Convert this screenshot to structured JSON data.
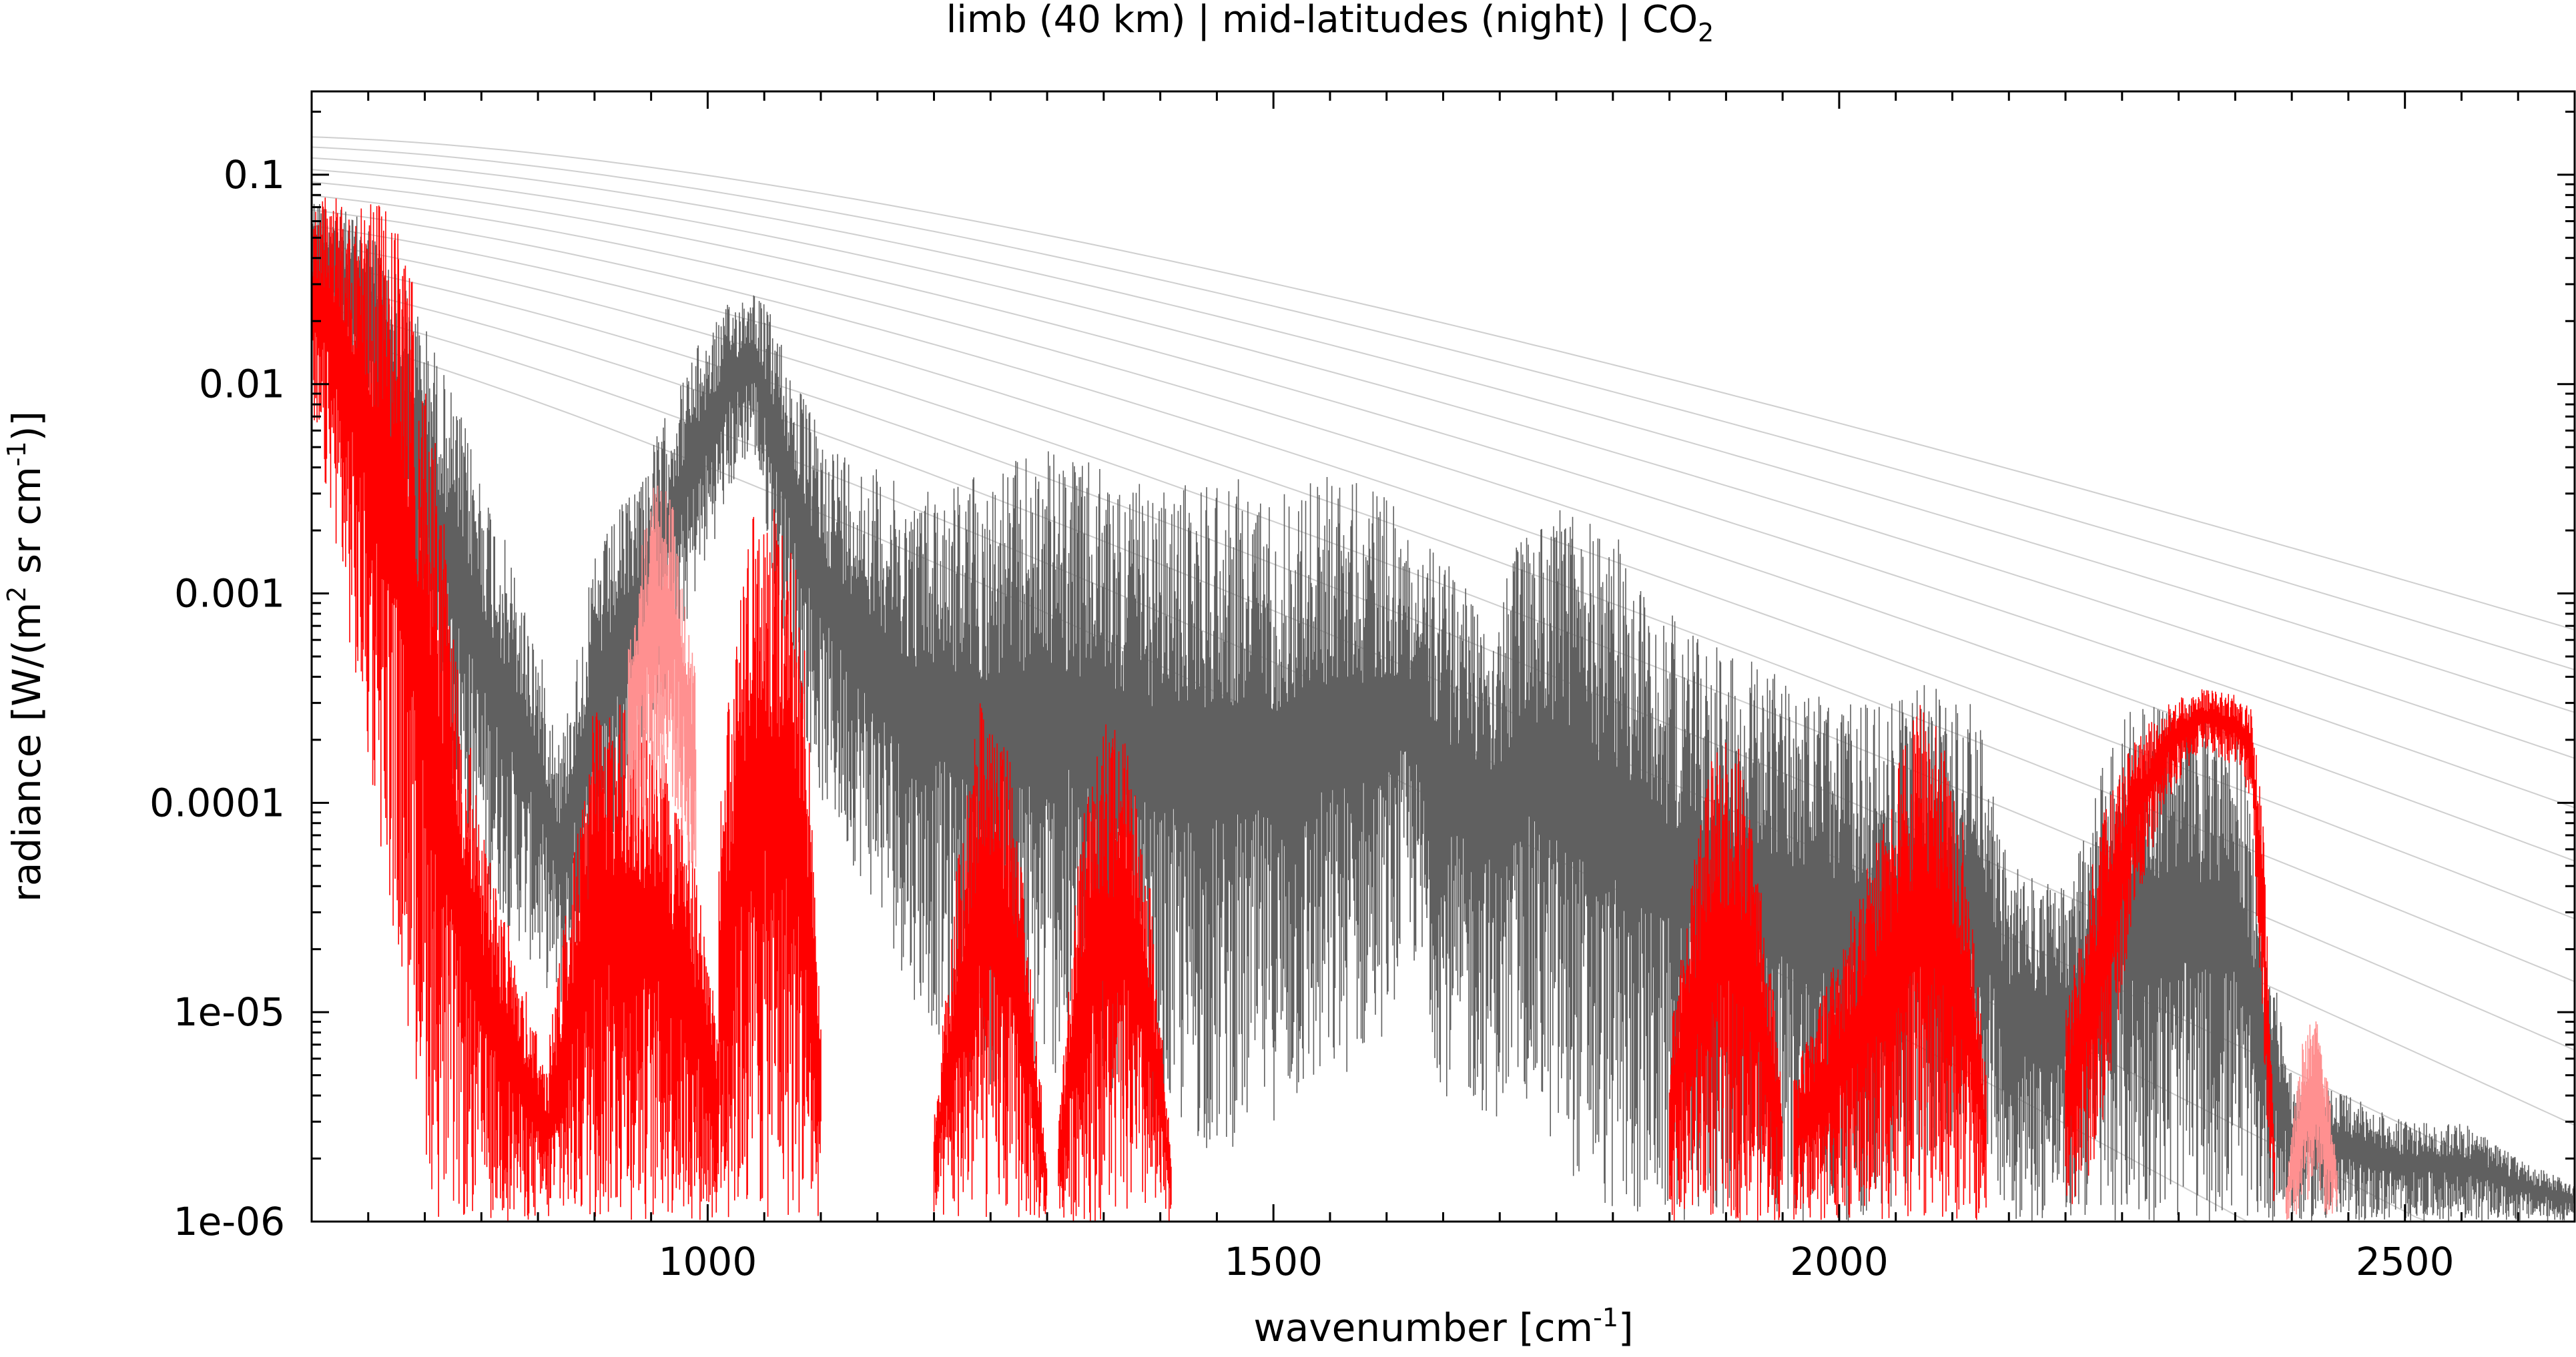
{
  "chart_data": {
    "type": "line",
    "title": {
      "main": "limb (40 km) | mid-latitudes (night) | CO",
      "subscript": "2"
    },
    "xlabel": {
      "text": "wavenumber [cm",
      "superscript": "-1",
      "suffix": "]"
    },
    "ylabel": {
      "part1": "radiance [W/(m",
      "sup1": "2",
      "part2": " sr cm",
      "sup2": "-1",
      "part3": ")]"
    },
    "x_axis": {
      "lim": [
        650,
        2650
      ],
      "major_ticks": [
        1000,
        1500,
        2000,
        2500
      ],
      "tick_labels": [
        "1000",
        "1500",
        "2000",
        "2500"
      ],
      "minor_step": 50
    },
    "y_axis": {
      "scale": "log",
      "lim": [
        1e-06,
        0.25
      ],
      "major_ticks": [
        1e-06,
        1e-05,
        0.0001,
        0.001,
        0.01,
        0.1
      ],
      "tick_labels": [
        "1e-06",
        "1e-05",
        "0.0001",
        "0.001",
        "0.01",
        "0.1"
      ]
    },
    "grid": false,
    "colors": {
      "total_spectrum": "#606060",
      "co2_spectrum": "#ff0000",
      "co2_light": "#ff9090",
      "planck_curves": "#bbbbbb"
    },
    "planck_reference_curves": {
      "description_units": "K",
      "temperatures": [
        180,
        190,
        200,
        210,
        220,
        230,
        240,
        250,
        260,
        270,
        280,
        290,
        300
      ]
    },
    "series": [
      {
        "role": "total",
        "envelope": {
          "x": [
            650,
            700,
            750,
            800,
            850,
            870,
            900,
            950,
            990,
            1020,
            1040,
            1060,
            1080,
            1100,
            1150,
            1180,
            1200,
            1250,
            1300,
            1350,
            1400,
            1450,
            1500,
            1550,
            1600,
            1620,
            1650,
            1700,
            1720,
            1750,
            1800,
            1850,
            1900,
            1950,
            2000,
            2050,
            2080,
            2100,
            2120,
            2150,
            2200,
            2250,
            2300,
            2350,
            2380,
            2400,
            2450,
            2500,
            2550,
            2600,
            2650
          ],
          "upper": [
            0.08,
            0.06,
            0.02,
            0.004,
            0.0006,
            0.0002,
            0.0015,
            0.005,
            0.015,
            0.025,
            0.03,
            0.02,
            0.01,
            0.006,
            0.004,
            0.003,
            0.0035,
            0.004,
            0.005,
            0.004,
            0.003,
            0.004,
            0.003,
            0.004,
            0.003,
            0.002,
            0.0015,
            0.001,
            0.002,
            0.003,
            0.002,
            0.0008,
            0.0006,
            0.0004,
            0.0003,
            0.0003,
            0.0004,
            0.0003,
            0.0003,
            5e-05,
            4e-05,
            0.0003,
            0.0003,
            0.0003,
            2e-05,
            5e-06,
            4e-06,
            3e-06,
            3e-06,
            2e-06,
            1.5e-06
          ],
          "lower": [
            0.02,
            0.005,
            0.0003,
            4e-05,
            1.5e-05,
            1e-05,
            3e-05,
            0.0002,
            0.001,
            0.003,
            0.005,
            0.001,
            0.0003,
            0.0001,
            3e-05,
            1.2e-05,
            8e-06,
            4e-06,
            5e-06,
            4e-06,
            3e-06,
            2e-06,
            3e-06,
            4e-06,
            8e-06,
            2e-05,
            4e-06,
            3e-06,
            4e-06,
            2e-06,
            1e-06,
            1e-06,
            1e-06,
            1e-06,
            1e-06,
            1e-06,
            2e-06,
            2e-06,
            3e-06,
            1e-06,
            1e-06,
            1e-06,
            1e-06,
            1e-06,
            1e-06,
            1e-06,
            1e-06,
            1e-06,
            1e-06,
            1e-06,
            1e-06
          ]
        }
      },
      {
        "role": "CO2",
        "bands": [
          {
            "x": [
              650,
              670,
              690,
              720,
              740,
              760,
              780,
              800,
              830,
              860
            ],
            "upper": [
              0.08,
              0.09,
              0.085,
              0.07,
              0.03,
              0.005,
              0.0005,
              8e-05,
              2e-05,
              5e-06
            ],
            "lower": [
              0.005,
              0.002,
              0.0003,
              3e-05,
              5e-06,
              1e-06,
              1e-06,
              1e-06,
              1e-06,
              1e-06
            ]
          },
          {
            "x": [
              860,
              880,
              900,
              930,
              960,
              990,
              1010
            ],
            "upper": [
              8e-06,
              5e-05,
              0.0003,
              0.0003,
              0.0002,
              5e-05,
              8e-06
            ],
            "lower": [
              1e-06,
              1e-06,
              1e-06,
              1e-06,
              1e-06,
              1e-06,
              1e-06
            ]
          },
          {
            "x": [
              930,
              950,
              970,
              990
            ],
            "upper": [
              0.0008,
              0.0035,
              0.003,
              0.0004
            ],
            "lower": [
              5e-05,
              0.0001,
              0.0001,
              3e-05
            ],
            "light": true
          },
          {
            "x": [
              1010,
              1030,
              1050,
              1070,
              1085,
              1100
            ],
            "upper": [
              0.0001,
              0.0015,
              0.0035,
              0.003,
              0.0008,
              1e-05
            ],
            "lower": [
              1e-06,
              1e-06,
              1e-06,
              1e-06,
              1e-06,
              1e-06
            ]
          },
          {
            "x": [
              1200,
              1220,
              1240,
              1260,
              1280,
              1300
            ],
            "upper": [
              3e-06,
              5e-05,
              0.0003,
              0.0003,
              5e-05,
              2e-06
            ],
            "lower": [
              1e-06,
              1e-06,
              1e-06,
              1e-06,
              1e-06,
              1e-06
            ]
          },
          {
            "x": [
              1310,
              1330,
              1350,
              1370,
              1390,
              1410
            ],
            "upper": [
              3e-06,
              8e-05,
              0.00025,
              0.0002,
              5e-05,
              2e-06
            ],
            "lower": [
              1e-06,
              1e-06,
              1e-06,
              1e-06,
              1e-06,
              1e-06
            ]
          },
          {
            "x": [
              1850,
              1870,
              1890,
              1910,
              1930,
              1950
            ],
            "upper": [
              8e-06,
              5e-05,
              0.0002,
              0.0002,
              5e-05,
              5e-06
            ],
            "lower": [
              1e-06,
              1e-06,
              1e-06,
              1e-06,
              1e-06,
              1e-06
            ]
          },
          {
            "x": [
              1960,
              2000,
              2040,
              2070,
              2090,
              2110,
              2130
            ],
            "upper": [
              5e-06,
              2e-05,
              0.0001,
              0.0003,
              0.00025,
              8e-05,
              5e-06
            ],
            "lower": [
              1e-06,
              1e-06,
              1e-06,
              1e-06,
              1e-06,
              1e-06,
              1e-06
            ]
          },
          {
            "x": [
              2200,
              2230,
              2260,
              2290,
              2320,
              2350,
              2365,
              2375,
              2385
            ],
            "upper": [
              1e-05,
              8e-05,
              0.0002,
              0.0003,
              0.00035,
              0.00033,
              0.0003,
              8e-05,
              2e-06
            ],
            "lower": [
              1e-06,
              2e-06,
              3e-05,
              0.0001,
              0.00018,
              0.00015,
              0.0001,
              5e-06,
              1e-06
            ]
          },
          {
            "x": [
              2395,
              2410,
              2425,
              2440
            ],
            "upper": [
              1.5e-06,
              8e-06,
              1e-05,
              2e-06
            ],
            "lower": [
              1e-06,
              1e-06,
              1e-06,
              1e-06
            ],
            "light": true
          }
        ]
      }
    ]
  }
}
